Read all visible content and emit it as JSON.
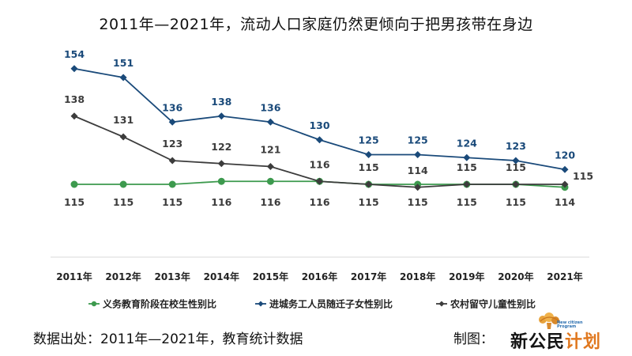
{
  "chart_data": {
    "type": "line",
    "title": "2011年—2021年，流动人口家庭仍然更倾向于把男孩带在身边",
    "categories": [
      "2011年",
      "2012年",
      "2013年",
      "2014年",
      "2015年",
      "2016年",
      "2017年",
      "2018年",
      "2019年",
      "2020年",
      "2021年"
    ],
    "series": [
      {
        "name": "义务教育阶段在校生性别比",
        "color": "#3d9a4e",
        "marker": "circle",
        "values": [
          115,
          115,
          115,
          116,
          116,
          116,
          115,
          115,
          115,
          115,
          114
        ]
      },
      {
        "name": "进城务工人员随迁子女性别比",
        "color": "#1a4a7a",
        "marker": "diamond",
        "values": [
          154,
          151,
          136,
          138,
          136,
          130,
          125,
          125,
          124,
          123,
          120
        ]
      },
      {
        "name": "农村留守儿童性别比",
        "color": "#3c3c3c",
        "marker": "diamond",
        "values": [
          138,
          131,
          123,
          122,
          121,
          116,
          115,
          114,
          115,
          115,
          115
        ]
      }
    ],
    "legend_position": "bottom",
    "grid": false
  },
  "footer": {
    "source": "数据出处：2011年—2021年，教育统计数据",
    "credit": "制图："
  },
  "logo": {
    "subtitle_line1": "New citizen",
    "subtitle_line2": "Program",
    "name_part1": "新公民",
    "name_part2": "计划"
  }
}
